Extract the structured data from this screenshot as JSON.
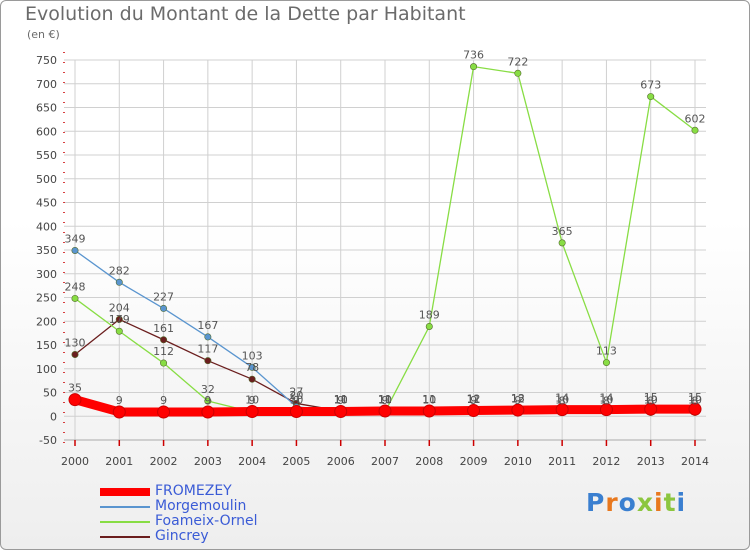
{
  "title": "Evolution du Montant de la Dette par Habitant",
  "subtitle": "(en €)",
  "brand": "Proxiti",
  "colors": {
    "grid": "#d0d0d0",
    "axis": "#cc0000",
    "tick_text": "#444444",
    "legend_text": "#3a5bd6"
  },
  "chart_data": {
    "type": "line",
    "title": "Evolution du Montant de la Dette par Habitant",
    "ylabel": "(en €)",
    "xlabel": "",
    "ylim": [
      -50,
      750
    ],
    "y_ticks": [
      -50,
      0,
      50,
      100,
      150,
      200,
      250,
      300,
      350,
      400,
      450,
      500,
      550,
      600,
      650,
      700,
      750
    ],
    "x": [
      "2000",
      "2001",
      "2002",
      "2003",
      "2004",
      "2005",
      "2006",
      "2007",
      "2008",
      "2009",
      "2010",
      "2011",
      "2012",
      "2013",
      "2014"
    ],
    "grid": true,
    "legend_position": "bottom-left",
    "series": [
      {
        "name": "FROMEZEY",
        "color": "#ff0000",
        "width": 9,
        "values": [
          35,
          9,
          9,
          9,
          10,
          10,
          10,
          11,
          11,
          12,
          13,
          14,
          14,
          15,
          15
        ],
        "labels": [
          "35",
          "9",
          "9",
          "9",
          "10",
          "10",
          "10",
          "11",
          "11",
          "12",
          "13",
          "14",
          "14",
          "15",
          "15"
        ]
      },
      {
        "name": "Morgemoulin",
        "color": "#5a95cf",
        "width": 1.3,
        "values": [
          349,
          282,
          227,
          167,
          103,
          20,
          10,
          10,
          10,
          9,
          9,
          8,
          8,
          8,
          8
        ],
        "labels": [
          "349",
          "282",
          "227",
          "167",
          "103",
          "20",
          "10",
          "10",
          "10",
          "9",
          "9",
          "8",
          "8",
          "8",
          "8"
        ]
      },
      {
        "name": "Foameix-Ornel",
        "color": "#88dd44",
        "width": 1.3,
        "values": [
          248,
          179,
          112,
          32,
          9,
          9,
          9,
          9,
          189,
          736,
          722,
          365,
          113,
          673,
          602
        ],
        "labels": [
          "248",
          "179",
          "112",
          "32",
          "9",
          "9",
          "9",
          "9",
          "189",
          "736",
          "722",
          "365",
          "113",
          "673",
          "602"
        ]
      },
      {
        "name": "Gincrey",
        "color": "#6b1e1e",
        "width": 1.3,
        "values": [
          130,
          204,
          161,
          117,
          78,
          27,
          11,
          11,
          11,
          11,
          12,
          10,
          10,
          10,
          10
        ],
        "labels": [
          "130",
          "204",
          "161",
          "117",
          "78",
          "27",
          "11",
          "11",
          "11",
          "11",
          "12",
          "10",
          "10",
          "10",
          "10"
        ]
      }
    ]
  },
  "legend": [
    {
      "label": "FROMEZEY",
      "color": "#ff0000",
      "thickness": 8
    },
    {
      "label": "Morgemoulin",
      "color": "#5a95cf",
      "thickness": 2
    },
    {
      "label": "Foameix-Ornel",
      "color": "#88dd44",
      "thickness": 2
    },
    {
      "label": "Gincrey",
      "color": "#6b1e1e",
      "thickness": 2
    }
  ]
}
